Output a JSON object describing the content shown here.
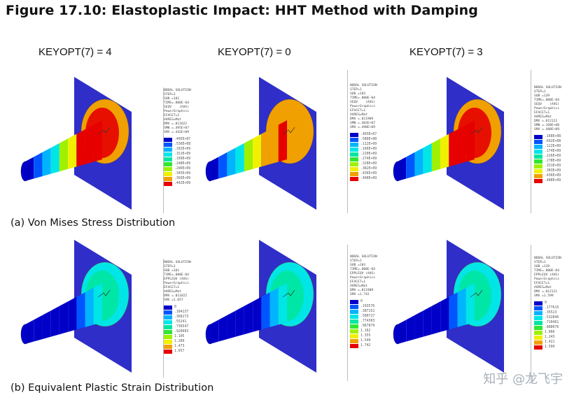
{
  "figure": {
    "title": "Figure 17.10: Elastoplastic Impact: HHT Method with Damping",
    "column_labels": [
      "KEYOPT(7) = 4",
      "KEYOPT(7) =  0",
      "KEYOPT(7) = 3"
    ],
    "captions": {
      "a": "(a) Von Mises Stress Distribution",
      "b": "(b) Equivalent Plastic Strain Distribution"
    },
    "watermark": "知乎 @龙飞宇"
  },
  "colors": {
    "plate": "#2f2ec8",
    "contour_scale": [
      "#0000c8",
      "#0055ff",
      "#00b4ff",
      "#00e6e6",
      "#00e6a0",
      "#32e632",
      "#a0f000",
      "#f0f000",
      "#f0a000",
      "#e60000"
    ]
  },
  "legends": {
    "stress_k4": {
      "header": "NODAL SOLUTION\nSTEP=1\nSUB =101\nTIME=.800E-04\nSEQV    (AVG)\nPowerGraphics\nEFACET=1\nAVRES=Mat\nDMX =.011822\nSMN =.495E+07\nSMX =.442E+09",
      "values": [
        ".495E+07",
        ".536E+08",
        ".102E+09",
        ".151E+09",
        ".199E+09",
        ".248E+09",
        ".296E+09",
        ".345E+09",
        ".393E+09",
        ".442E+09"
      ]
    },
    "stress_k0": {
      "header": "NODAL SOLUTION\nSTEP=1\nSUB =103\nTIME=.800E-04\nSEQV    (AVG)\nPowerGraphics\nEFACET=1\nAVRES=Mat\nDMX =.011909\nSMN =.403E+07\nSMX =.490E+09",
      "values": [
        ".403E+07",
        ".580E+08",
        ".112E+09",
        ".166E+09",
        ".220E+09",
        ".274E+09",
        ".328E+09",
        ".382E+09",
        ".436E+09",
        ".490E+09"
      ]
    },
    "stress_k3": {
      "header": "NODAL SOLUTION\nSTEP=1\nSUB =139\nTIME=.800E-04\nSEQV    (AVG)\nPowerGraphics\nEFACET=1\nAVRES=Mat\nDMX =.012121\nSMN =.168E+08\nSMX =.488E+09",
      "values": [
        ".168E+08",
        ".692E+08",
        ".122E+09",
        ".174E+09",
        ".226E+09",
        ".278E+09",
        ".331E+09",
        ".383E+09",
        ".436E+09",
        ".488E+09"
      ]
    },
    "strain_k4": {
      "header": "NODAL SOLUTION\nSTEP=1\nSUB =101\nTIME=.800E-04\nEPPLEQV (AVG)\nPowerGraphics\nEFACET=1\nAVRES=Mat\nDMX =.011822\nSMX =1.657",
      "values": [
        "0",
        ".184137",
        ".368273",
        ".55241",
        ".736547",
        ".920683",
        "1.105",
        "1.289",
        "1.473",
        "1.657"
      ]
    },
    "strain_k0": {
      "header": "NODAL SOLUTION\nSTEP=1\nSUB =103\nTIME=.800E-04\nEPPLEQV (AVG)\nPowerGraphics\nEFACET=1\nAVRES=Mat\nDMX =.011909\nSMX =1.742",
      "values": [
        "0",
        ".193576",
        ".387152",
        ".580727",
        ".774303",
        ".967879",
        "1.162",
        "1.355",
        "1.549",
        "1.742"
      ]
    },
    "strain_k3": {
      "header": "NODAL SOLUTION\nSTEP=1\nSUB =139\nTIME=.800E-04\nEPPLEQV (AVG)\nPowerGraphics\nEFACET=1\nAVRES=Mat\nDMX =.012121\nSMX =1.599",
      "values": [
        "0",
        ".177615",
        ".35523",
        ".532846",
        ".710461",
        ".888076",
        "1.066",
        "1.243",
        "1.421",
        "1.599"
      ]
    }
  }
}
